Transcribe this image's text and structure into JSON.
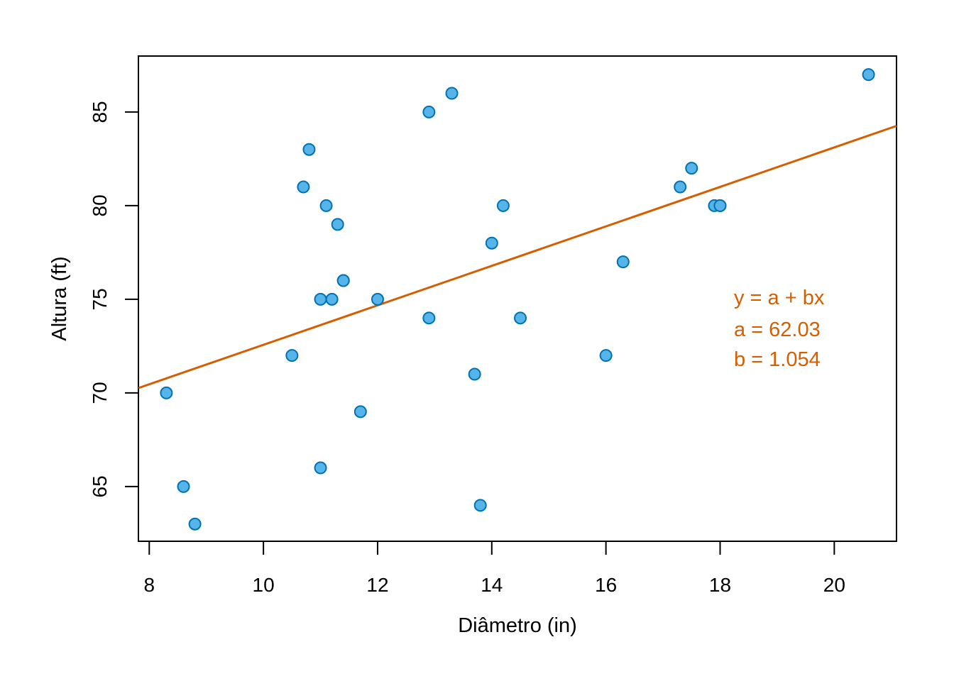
{
  "chart_data": {
    "type": "scatter",
    "title": "",
    "xlabel": "Diâmetro (in)",
    "ylabel": "Altura (ft)",
    "xlim": [
      7.81,
      21.09
    ],
    "ylim": [
      62.08,
      87.99
    ],
    "xticks": [
      8,
      10,
      12,
      14,
      16,
      18,
      20
    ],
    "yticks": [
      65,
      70,
      75,
      80,
      85
    ],
    "grid": false,
    "x": [
      8.3,
      8.6,
      8.8,
      10.5,
      10.7,
      10.8,
      11.0,
      11.0,
      11.1,
      11.2,
      11.3,
      11.4,
      11.4,
      11.7,
      12.0,
      12.9,
      12.9,
      13.3,
      13.7,
      13.8,
      14.0,
      14.2,
      14.5,
      16.0,
      16.3,
      17.3,
      17.5,
      17.9,
      18.0,
      18.0,
      20.6
    ],
    "y": [
      70,
      65,
      63,
      72,
      81,
      83,
      66,
      75,
      80,
      75,
      79,
      76,
      76,
      69,
      75,
      74,
      85,
      86,
      71,
      64,
      78,
      80,
      74,
      72,
      77,
      81,
      82,
      80,
      80,
      80,
      87
    ],
    "regression": {
      "a": 62.03,
      "b": 1.054
    },
    "annotations": [
      "y = a + bx",
      "a = 62.03",
      "b = 1.054"
    ],
    "colors": {
      "point_fill": "#56B4E9",
      "point_stroke": "#0072B2",
      "line": "#D55E00"
    }
  }
}
